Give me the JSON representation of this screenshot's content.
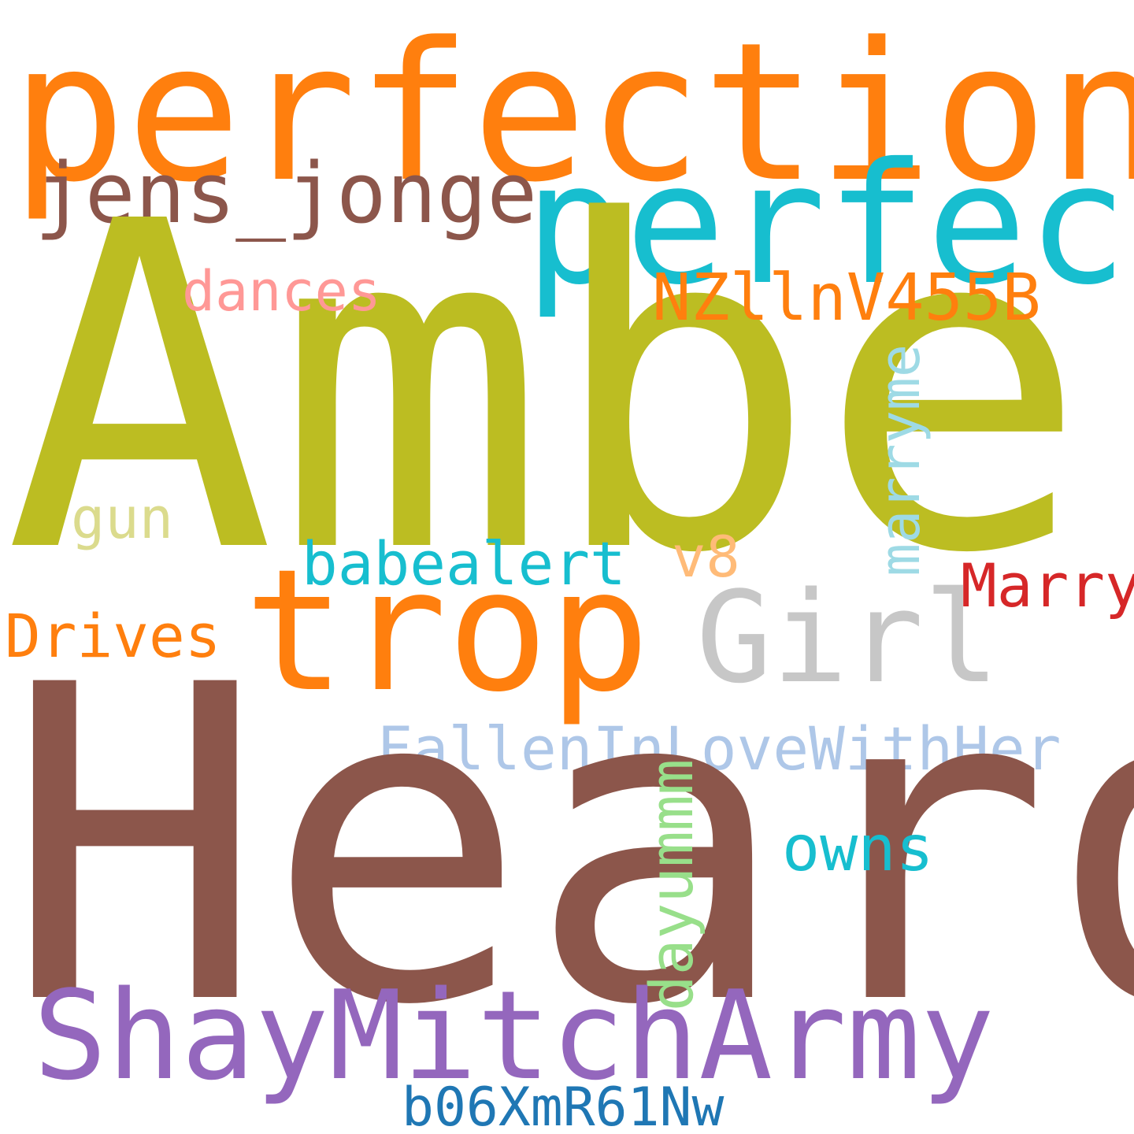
{
  "words": [
    {
      "key": "perfection",
      "text": "perfection",
      "color": "#ff7f0e",
      "orientation": "horizontal"
    },
    {
      "key": "perfect",
      "text": "perfect",
      "color": "#17becf",
      "orientation": "horizontal"
    },
    {
      "key": "jens_jonge",
      "text": "jens_jonge",
      "color": "#8c564b",
      "orientation": "horizontal"
    },
    {
      "key": "amber",
      "text": "Amber",
      "color": "#bcbd22",
      "orientation": "horizontal"
    },
    {
      "key": "nzllnv455b",
      "text": "NZllnV455B",
      "color": "#ff7f0e",
      "orientation": "horizontal"
    },
    {
      "key": "dances",
      "text": "dances",
      "color": "#ff9896",
      "orientation": "horizontal"
    },
    {
      "key": "marryme",
      "text": "marryme",
      "color": "#9edae5",
      "orientation": "vertical"
    },
    {
      "key": "gun",
      "text": "gun",
      "color": "#dbdb8d",
      "orientation": "horizontal"
    },
    {
      "key": "v8",
      "text": "v8",
      "color": "#ffbb78",
      "orientation": "horizontal"
    },
    {
      "key": "babealert",
      "text": "babealert",
      "color": "#17becf",
      "orientation": "horizontal"
    },
    {
      "key": "marry",
      "text": "Marry",
      "color": "#d62728",
      "orientation": "horizontal"
    },
    {
      "key": "trop",
      "text": "trop",
      "color": "#ff7f0e",
      "orientation": "horizontal"
    },
    {
      "key": "girl",
      "text": "Girl",
      "color": "#c7c7c7",
      "orientation": "horizontal"
    },
    {
      "key": "drives",
      "text": "Drives",
      "color": "#ff7f0e",
      "orientation": "horizontal"
    },
    {
      "key": "fallen",
      "text": "FallenInLoveWithHer",
      "color": "#aec7e8",
      "orientation": "horizontal"
    },
    {
      "key": "heard",
      "text": "Heard",
      "color": "#8c564b",
      "orientation": "horizontal"
    },
    {
      "key": "owns",
      "text": "owns",
      "color": "#17becf",
      "orientation": "horizontal"
    },
    {
      "key": "dayummm",
      "text": "dayummm",
      "color": "#98df8a",
      "orientation": "vertical"
    },
    {
      "key": "shaymitcharmy",
      "text": "ShayMitchArmy",
      "color": "#9467bd",
      "orientation": "horizontal"
    },
    {
      "key": "b06xmr61nw",
      "text": "b06XmR61Nw",
      "color": "#1f77b4",
      "orientation": "horizontal"
    }
  ]
}
